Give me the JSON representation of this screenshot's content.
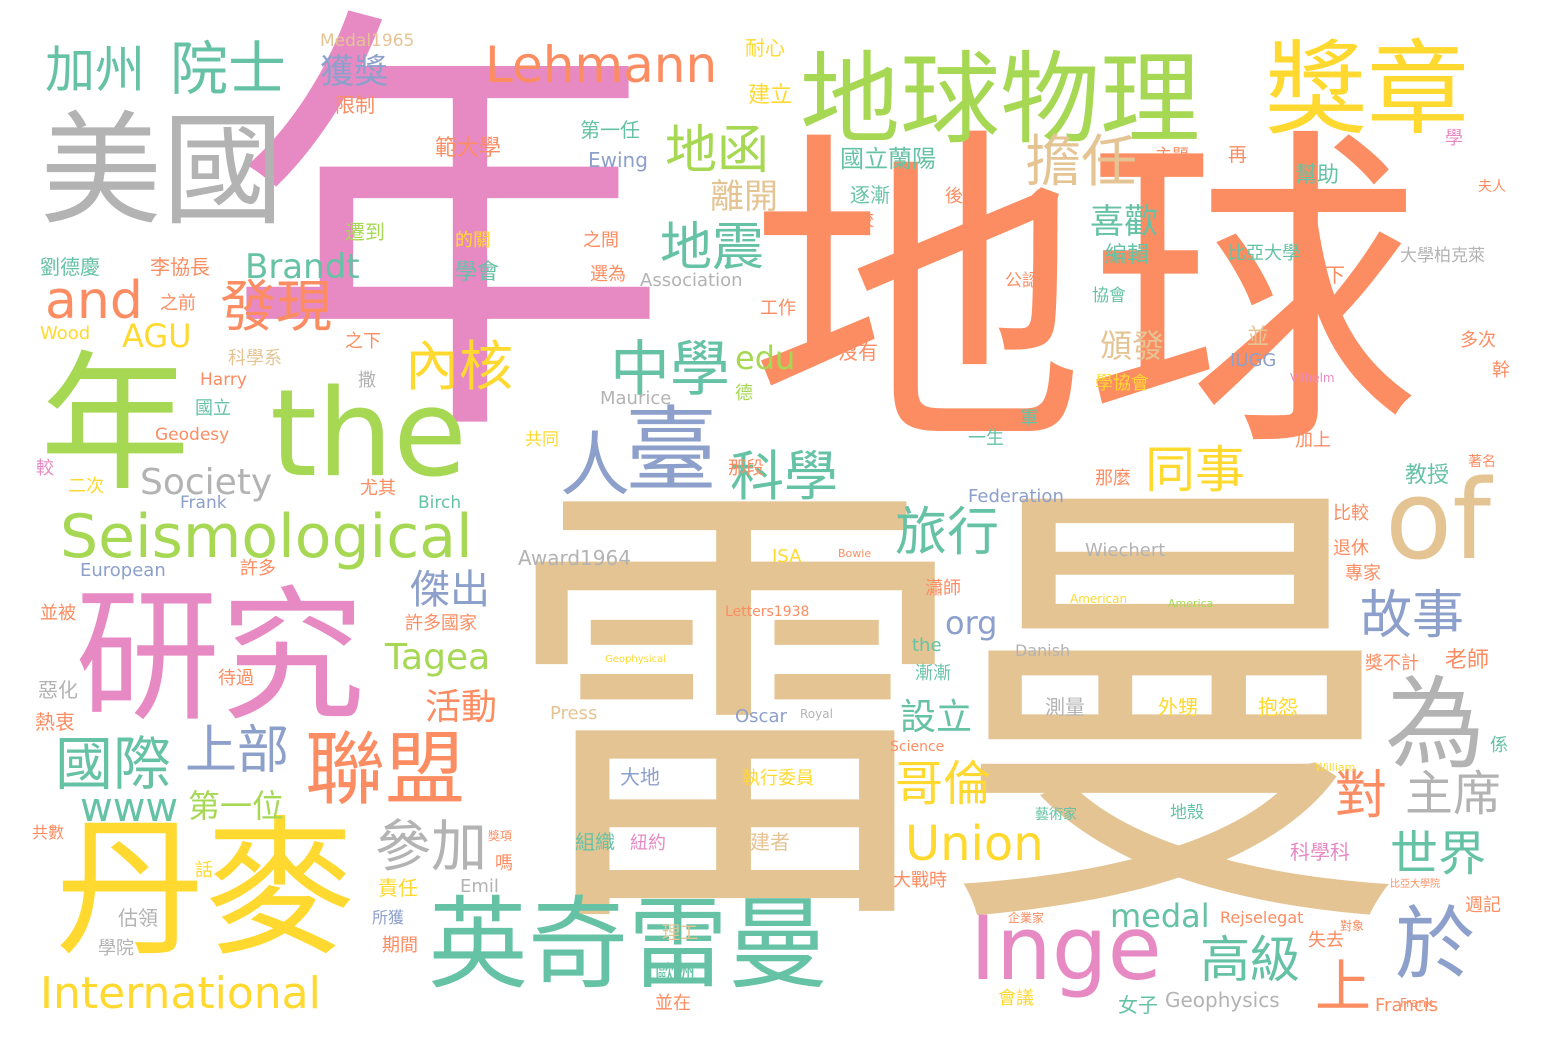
{
  "palette": {
    "orange": "#fc8d62",
    "tan": "#e5c494",
    "pink": "#e78ac3",
    "green": "#a6d854",
    "teal": "#66c2a5",
    "blue": "#8da0cb",
    "yellow": "#ffd92f",
    "gray": "#b3b3b3"
  },
  "words": [
    {
      "text": "地球",
      "color": "orange"
    },
    {
      "text": "雷曼",
      "color": "tan"
    },
    {
      "text": "年",
      "color": "pink"
    },
    {
      "text": "年",
      "color": "green"
    },
    {
      "text": "the",
      "color": "green"
    },
    {
      "text": "美國",
      "color": "gray"
    },
    {
      "text": "地球物理",
      "color": "green"
    },
    {
      "text": "獎章",
      "color": "yellow"
    },
    {
      "text": "研究",
      "color": "pink"
    },
    {
      "text": "丹麥",
      "color": "yellow"
    },
    {
      "text": "英奇雷曼",
      "color": "teal"
    },
    {
      "text": "of",
      "color": "tan"
    },
    {
      "text": "為",
      "color": "gray"
    },
    {
      "text": "Inge",
      "color": "pink"
    },
    {
      "text": "聯盟",
      "color": "orange"
    },
    {
      "text": "臺",
      "color": "blue"
    },
    {
      "text": "Seismological",
      "color": "green"
    },
    {
      "text": "加州",
      "color": "teal"
    },
    {
      "text": "院士",
      "color": "teal"
    },
    {
      "text": "Lehmann",
      "color": "orange"
    },
    {
      "text": "International",
      "color": "yellow"
    },
    {
      "text": "Union",
      "color": "yellow"
    },
    {
      "text": "於",
      "color": "blue"
    },
    {
      "text": "國際",
      "color": "teal"
    },
    {
      "text": "地函",
      "color": "green"
    },
    {
      "text": "擔任",
      "color": "tan"
    },
    {
      "text": "地震",
      "color": "teal"
    },
    {
      "text": "中學",
      "color": "teal"
    },
    {
      "text": "科學",
      "color": "teal"
    },
    {
      "text": "發現",
      "color": "orange"
    },
    {
      "text": "and",
      "color": "orange"
    },
    {
      "text": "內核",
      "color": "yellow"
    },
    {
      "text": "上部",
      "color": "blue"
    },
    {
      "text": "參加",
      "color": "gray"
    },
    {
      "text": "人",
      "color": "blue"
    },
    {
      "text": "旅行",
      "color": "teal"
    },
    {
      "text": "同事",
      "color": "yellow"
    },
    {
      "text": "故事",
      "color": "blue"
    },
    {
      "text": "主席",
      "color": "gray"
    },
    {
      "text": "世界",
      "color": "teal"
    },
    {
      "text": "高級",
      "color": "teal"
    },
    {
      "text": "哥倫",
      "color": "yellow"
    },
    {
      "text": "對",
      "color": "orange"
    },
    {
      "text": "上",
      "color": "orange"
    },
    {
      "text": "Brandt",
      "color": "teal"
    },
    {
      "text": "獲獎",
      "color": "blue"
    },
    {
      "text": "離開",
      "color": "tan"
    },
    {
      "text": "喜歡",
      "color": "teal"
    },
    {
      "text": "編輯",
      "color": "teal"
    },
    {
      "text": "頒發",
      "color": "tan"
    },
    {
      "text": "AGU",
      "color": "yellow"
    },
    {
      "text": "edu",
      "color": "green"
    },
    {
      "text": "Society",
      "color": "gray"
    },
    {
      "text": "www",
      "color": "teal"
    },
    {
      "text": "第一位",
      "color": "green"
    },
    {
      "text": "medal",
      "color": "teal"
    },
    {
      "text": "Tagea",
      "color": "green"
    },
    {
      "text": "傑出",
      "color": "blue"
    },
    {
      "text": "org",
      "color": "blue"
    },
    {
      "text": "活動",
      "color": "orange"
    },
    {
      "text": "設立",
      "color": "teal"
    },
    {
      "text": "並",
      "color": "tan"
    },
    {
      "text": "國立蘭陽",
      "color": "teal"
    },
    {
      "text": "範大學",
      "color": "orange"
    },
    {
      "text": "第一任",
      "color": "teal"
    },
    {
      "text": "Ewing",
      "color": "blue"
    },
    {
      "text": "建立",
      "color": "yellow"
    },
    {
      "text": "耐心",
      "color": "yellow"
    },
    {
      "text": "Medal1965",
      "color": "tan"
    },
    {
      "text": "限制",
      "color": "orange"
    },
    {
      "text": "逐漸",
      "color": "teal"
    },
    {
      "text": "分校",
      "color": "orange"
    },
    {
      "text": "幫助",
      "color": "teal"
    },
    {
      "text": "主題",
      "color": "orange"
    },
    {
      "text": "再",
      "color": "orange"
    },
    {
      "text": "學",
      "color": "pink"
    },
    {
      "text": "後",
      "color": "orange"
    },
    {
      "text": "夫人",
      "color": "orange"
    },
    {
      "text": "遷到",
      "color": "green"
    },
    {
      "text": "劉德慶",
      "color": "teal"
    },
    {
      "text": "李協長",
      "color": "orange"
    },
    {
      "text": "的關",
      "color": "yellow"
    },
    {
      "text": "之間",
      "color": "orange"
    },
    {
      "text": "選為",
      "color": "orange"
    },
    {
      "text": "學會",
      "color": "teal"
    },
    {
      "text": "Association",
      "color": "gray"
    },
    {
      "text": "比亞大學",
      "color": "teal"
    },
    {
      "text": "大學柏克萊",
      "color": "gray"
    },
    {
      "text": "下",
      "color": "orange"
    },
    {
      "text": "公認",
      "color": "orange"
    },
    {
      "text": "協會",
      "color": "teal"
    },
    {
      "text": "工作",
      "color": "orange"
    },
    {
      "text": "之前",
      "color": "orange"
    },
    {
      "text": "Wood",
      "color": "yellow"
    },
    {
      "text": "科學系",
      "color": "tan"
    },
    {
      "text": "之下",
      "color": "orange"
    },
    {
      "text": "沒有",
      "color": "orange"
    },
    {
      "text": "多次",
      "color": "orange"
    },
    {
      "text": "學協會",
      "color": "yellow"
    },
    {
      "text": "IUGG",
      "color": "blue"
    },
    {
      "text": "Vilhelm",
      "color": "pink"
    },
    {
      "text": "Harry",
      "color": "orange"
    },
    {
      "text": "國立",
      "color": "teal"
    },
    {
      "text": "撒",
      "color": "gray"
    },
    {
      "text": "Maurice",
      "color": "gray"
    },
    {
      "text": "德",
      "color": "green"
    },
    {
      "text": "Geodesy",
      "color": "orange"
    },
    {
      "text": "一生",
      "color": "teal"
    },
    {
      "text": "軍",
      "color": "teal"
    },
    {
      "text": "加上",
      "color": "orange"
    },
    {
      "text": "共同",
      "color": "yellow"
    },
    {
      "text": "那段",
      "color": "orange"
    },
    {
      "text": "二次",
      "color": "yellow"
    },
    {
      "text": "尤其",
      "color": "orange"
    },
    {
      "text": "Frank",
      "color": "blue"
    },
    {
      "text": "Birch",
      "color": "teal"
    },
    {
      "text": "Federation",
      "color": "blue"
    },
    {
      "text": "那麼",
      "color": "orange"
    },
    {
      "text": "教授",
      "color": "teal"
    },
    {
      "text": "著名",
      "color": "orange"
    },
    {
      "text": "比較",
      "color": "orange"
    },
    {
      "text": "退休",
      "color": "orange"
    },
    {
      "text": "專家",
      "color": "orange"
    },
    {
      "text": "European",
      "color": "blue"
    },
    {
      "text": "許多",
      "color": "orange"
    },
    {
      "text": "Award1964",
      "color": "gray"
    },
    {
      "text": "ISA",
      "color": "yellow"
    },
    {
      "text": "Bowie",
      "color": "orange"
    },
    {
      "text": "Wiechert",
      "color": "gray"
    },
    {
      "text": "並被",
      "color": "orange"
    },
    {
      "text": "許多國家",
      "color": "orange"
    },
    {
      "text": "Letters1938",
      "color": "orange"
    },
    {
      "text": "American",
      "color": "yellow"
    },
    {
      "text": "America",
      "color": "green"
    },
    {
      "text": "瀟師",
      "color": "orange"
    },
    {
      "text": "the",
      "color": "teal"
    },
    {
      "text": "漸漸",
      "color": "teal"
    },
    {
      "text": "Danish",
      "color": "gray"
    },
    {
      "text": "Geophysical",
      "color": "yellow"
    },
    {
      "text": "獎不計",
      "color": "orange"
    },
    {
      "text": "老師",
      "color": "orange"
    },
    {
      "text": "惡化",
      "color": "gray"
    },
    {
      "text": "熱衷",
      "color": "orange"
    },
    {
      "text": "待過",
      "color": "orange"
    },
    {
      "text": "Press",
      "color": "tan"
    },
    {
      "text": "測量",
      "color": "gray"
    },
    {
      "text": "外甥",
      "color": "yellow"
    },
    {
      "text": "抱怨",
      "color": "yellow"
    },
    {
      "text": "Oscar",
      "color": "blue"
    },
    {
      "text": "Royal",
      "color": "gray"
    },
    {
      "text": "Science",
      "color": "orange"
    },
    {
      "text": "William",
      "color": "yellow"
    },
    {
      "text": "係",
      "color": "teal"
    },
    {
      "text": "大地",
      "color": "blue"
    },
    {
      "text": "執行委員",
      "color": "yellow"
    },
    {
      "text": "地殼",
      "color": "teal"
    },
    {
      "text": "藝術家",
      "color": "teal"
    },
    {
      "text": "組織",
      "color": "teal"
    },
    {
      "text": "紐約",
      "color": "pink"
    },
    {
      "text": "創建者",
      "color": "tan"
    },
    {
      "text": "科學科",
      "color": "pink"
    },
    {
      "text": "大戰時",
      "color": "orange"
    },
    {
      "text": "責任",
      "color": "yellow"
    },
    {
      "text": "Emil",
      "color": "gray"
    },
    {
      "text": "嗎",
      "color": "orange"
    },
    {
      "text": "所獲",
      "color": "blue"
    },
    {
      "text": "估領",
      "color": "gray"
    },
    {
      "text": "學院",
      "color": "gray"
    },
    {
      "text": "期間",
      "color": "orange"
    },
    {
      "text": "理工",
      "color": "tan"
    },
    {
      "text": "失去",
      "color": "orange"
    },
    {
      "text": "歐洲",
      "color": "teal"
    },
    {
      "text": "並在",
      "color": "orange"
    },
    {
      "text": "女子",
      "color": "teal"
    },
    {
      "text": "Geophysics",
      "color": "gray"
    },
    {
      "text": "Francis",
      "color": "orange"
    },
    {
      "text": "Rejselegat",
      "color": "orange"
    },
    {
      "text": "會議",
      "color": "yellow"
    },
    {
      "text": "企業家",
      "color": "orange"
    },
    {
      "text": "週記",
      "color": "orange"
    },
    {
      "text": "話",
      "color": "yellow"
    },
    {
      "text": "共數",
      "color": "orange"
    },
    {
      "text": "較",
      "color": "pink"
    },
    {
      "text": "Frank",
      "color": "orange"
    },
    {
      "text": "幹",
      "color": "orange"
    },
    {
      "text": "比亞大學院",
      "color": "orange"
    },
    {
      "text": "對象",
      "color": "orange"
    },
    {
      "text": "獎項",
      "color": "orange"
    }
  ]
}
